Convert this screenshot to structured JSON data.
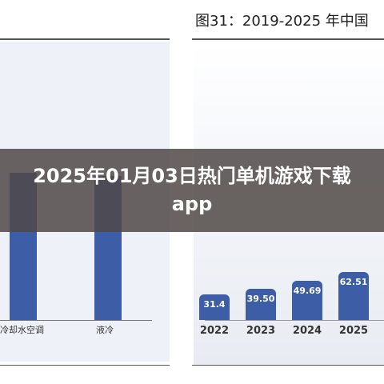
{
  "overlay": {
    "title": "2025年01月03日热门单机游戏下载app"
  },
  "left_chart": {
    "labels": [
      "冷却水空调",
      "液冷"
    ],
    "bar_heights_fraction": [
      0.92,
      0.9
    ]
  },
  "right_chart": {
    "title": "图31：2019-2025 年中国",
    "chart_data": {
      "type": "bar",
      "categories": [
        "2022",
        "2023",
        "2024",
        "2025"
      ],
      "values": [
        31.4,
        39.5,
        49.69,
        62.51
      ],
      "value_labels": [
        "31.4",
        "39.50",
        "49.69",
        "62.51"
      ],
      "title": "",
      "xlabel": "",
      "ylabel": ""
    }
  },
  "colors": {
    "bar": "#3d5da6",
    "overlay": "#504846"
  }
}
